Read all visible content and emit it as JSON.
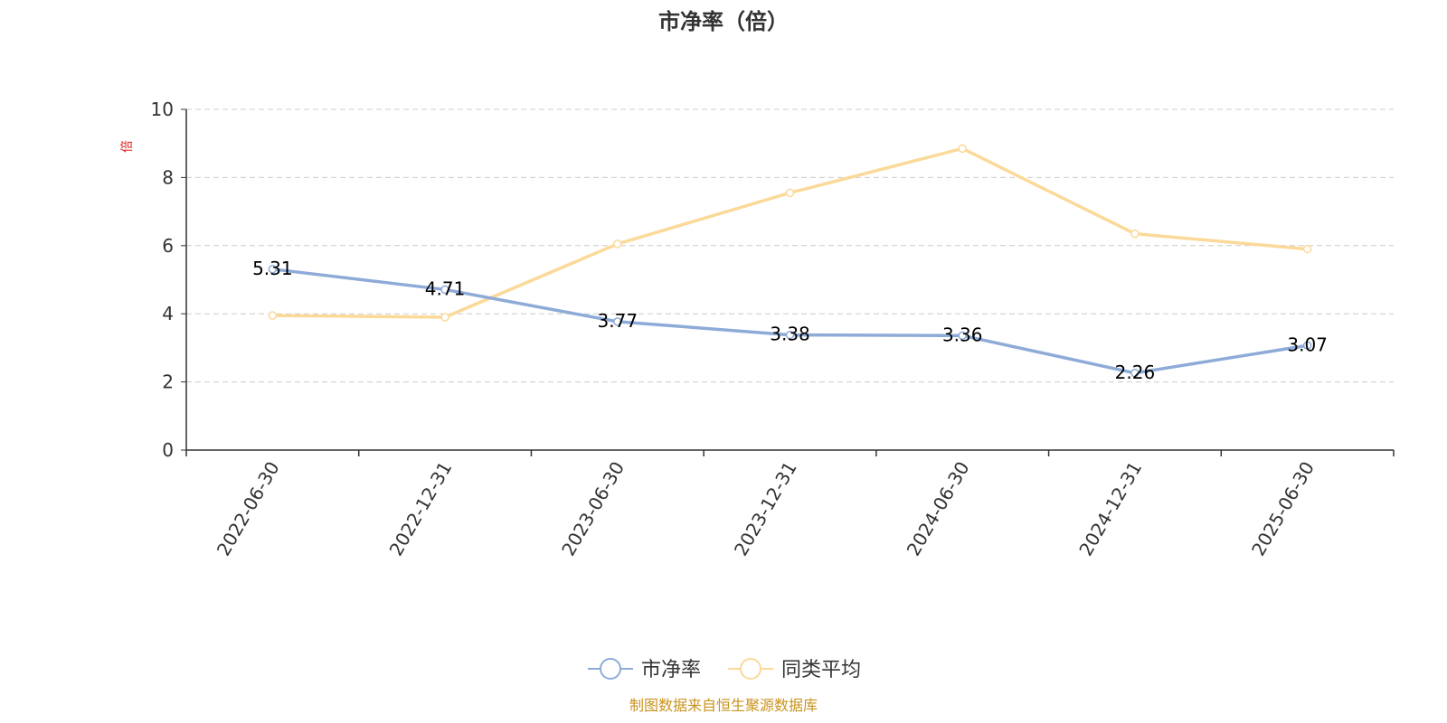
{
  "chart_data": {
    "type": "line",
    "title": "市净率（倍）",
    "ylabel": "倍",
    "xlabel": "",
    "ylim": [
      0,
      10
    ],
    "yticks": [
      "0",
      "2",
      "4",
      "6",
      "8",
      "10"
    ],
    "categories": [
      "2022-06-30",
      "2022-12-31",
      "2023-06-30",
      "2023-12-31",
      "2024-06-30",
      "2024-12-31",
      "2025-06-30"
    ],
    "series": [
      {
        "name": "市净率",
        "color": "#8eabd8",
        "values": [
          5.31,
          4.71,
          3.77,
          3.38,
          3.36,
          2.26,
          3.07
        ],
        "labels": [
          "5.31",
          "4.71",
          "3.77",
          "3.38",
          "3.36",
          "2.26",
          "3.07"
        ]
      },
      {
        "name": "同类平均",
        "color": "#fbd999",
        "values": [
          3.95,
          3.9,
          6.05,
          7.55,
          8.85,
          6.35,
          5.9
        ]
      }
    ],
    "grid": true,
    "legend_position": "bottom-center"
  },
  "footer": {
    "source": "制图数据来自恒生聚源数据库"
  }
}
